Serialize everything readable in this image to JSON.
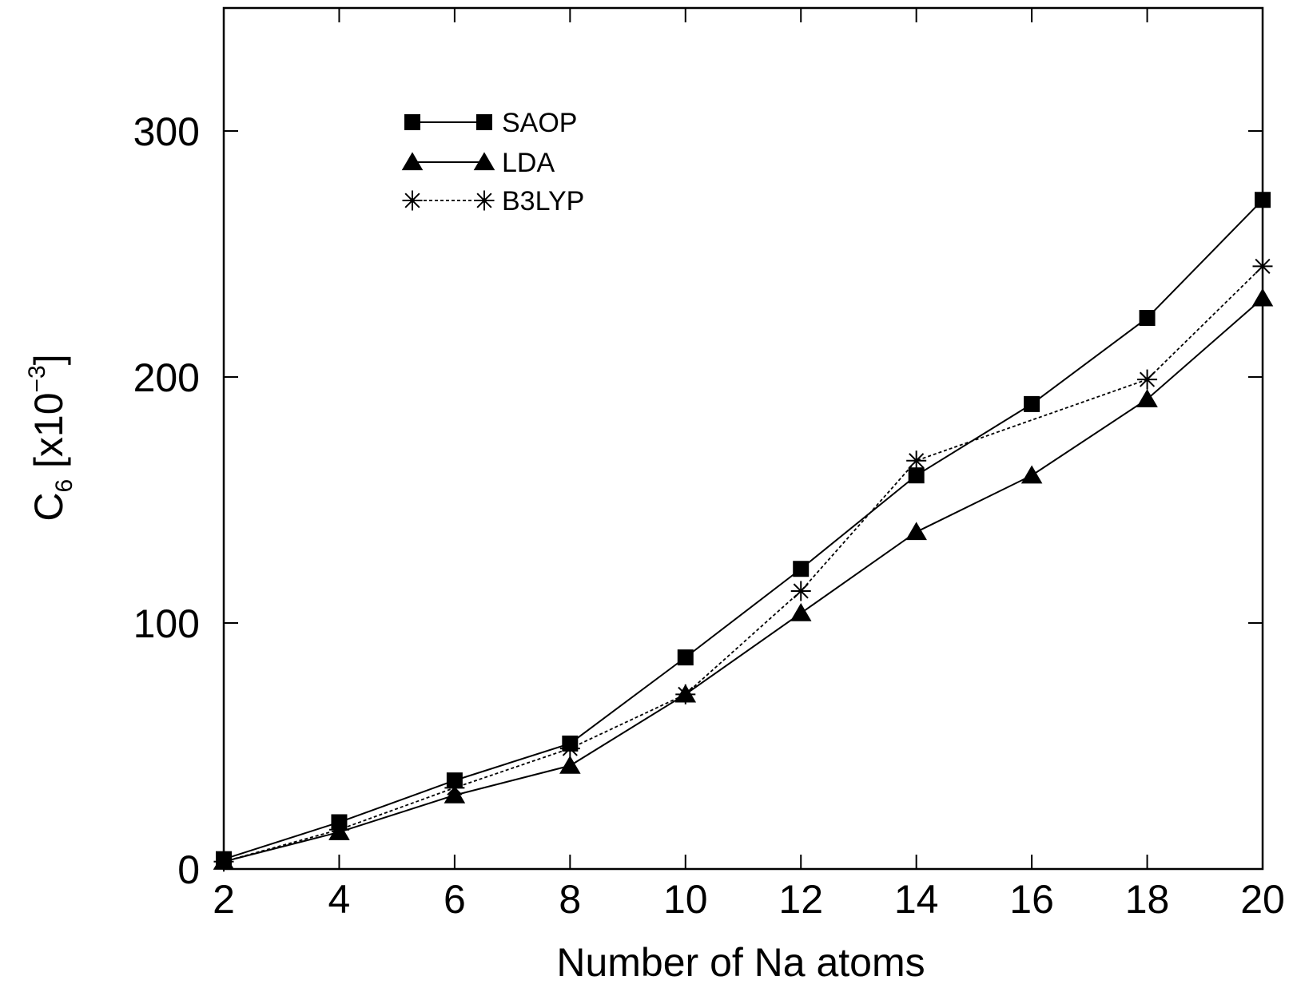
{
  "chart_data": {
    "type": "line",
    "title": "",
    "xlabel": "Number of  Na atoms",
    "ylabel": {
      "main": "C",
      "subscript": "6",
      "bracket_open": " [x10",
      "superscript": "−3",
      "bracket_close": "]"
    },
    "x": [
      2,
      4,
      6,
      8,
      10,
      12,
      14,
      16,
      18,
      20
    ],
    "xlim": [
      2,
      20
    ],
    "ylim": [
      0,
      350
    ],
    "xticks": [
      2,
      4,
      6,
      8,
      10,
      12,
      14,
      16,
      18,
      20
    ],
    "xtick_labels": [
      "2",
      "4",
      "6",
      "8",
      "10",
      "12",
      "14",
      "16",
      "18",
      "20"
    ],
    "yticks": [
      0,
      100,
      200,
      300
    ],
    "ytick_labels": [
      "0",
      "100",
      "200",
      "300"
    ],
    "grid": false,
    "legend_position": "top-left",
    "series": [
      {
        "name": "SAOP",
        "marker": "square",
        "line": "solid",
        "color": "#000000",
        "values": [
          4,
          19,
          36,
          51,
          86,
          122,
          160,
          189,
          224,
          272
        ]
      },
      {
        "name": "LDA",
        "marker": "triangle",
        "line": "solid",
        "color": "#000000",
        "values": [
          3,
          15,
          30,
          42,
          71,
          104,
          137,
          160,
          191,
          232
        ]
      },
      {
        "name": "B3LYP",
        "marker": "asterisk",
        "line": "dotted",
        "color": "#000000",
        "values": [
          3,
          16,
          33,
          49,
          71,
          113,
          166,
          null,
          199,
          245
        ]
      }
    ]
  }
}
